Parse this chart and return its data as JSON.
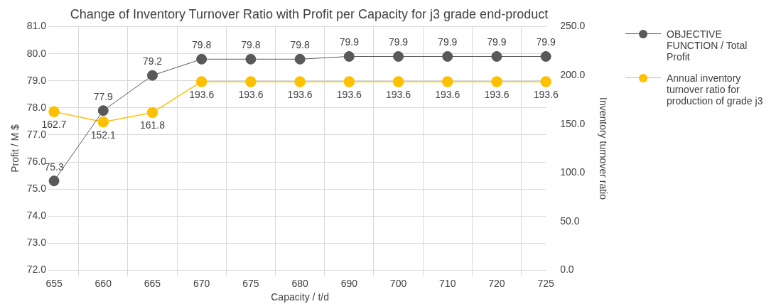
{
  "chart_data": {
    "type": "line",
    "title": "Change of Inventory Turnover Ratio with Profit per Capacity for j3 grade end-product",
    "xlabel": "Capacity / t/d",
    "ylabel": "Profit / M $",
    "y2label": "Inventory turnover ratio",
    "categories": [
      "655",
      "660",
      "665",
      "670",
      "675",
      "680",
      "690",
      "700",
      "710",
      "720",
      "725"
    ],
    "series": [
      {
        "name": "OBJECTIVE FUNCTION / Total Profit",
        "color": "#595959",
        "values": [
          75.3,
          77.9,
          79.2,
          79.8,
          79.8,
          79.8,
          79.9,
          79.9,
          79.9,
          79.9,
          79.9
        ]
      },
      {
        "name": "Annual inventory turnover ratio for production of grade j3",
        "color": "#ffc000",
        "axis": "y2",
        "values": [
          162.7,
          152.1,
          161.8,
          193.6,
          193.6,
          193.6,
          193.6,
          193.6,
          193.6,
          193.6,
          193.6
        ]
      }
    ],
    "ylim": [
      72,
      81
    ],
    "yticks": [
      {
        "value": 72,
        "label": "72.0"
      },
      {
        "value": 73,
        "label": "73.0"
      },
      {
        "value": 74,
        "label": "74.0"
      },
      {
        "value": 75,
        "label": "75.0"
      },
      {
        "value": 76,
        "label": "76.0"
      },
      {
        "value": 77,
        "label": "77.0"
      },
      {
        "value": 78,
        "label": "78.0"
      },
      {
        "value": 79,
        "label": "79.0"
      },
      {
        "value": 80,
        "label": "80.0"
      },
      {
        "value": 81,
        "label": "81.0"
      }
    ],
    "y2lim": [
      0,
      250
    ],
    "y2ticks": [
      {
        "value": 0,
        "label": "0.0"
      },
      {
        "value": 50,
        "label": "50.0"
      },
      {
        "value": 100,
        "label": "100.0"
      },
      {
        "value": 150,
        "label": "150.0"
      },
      {
        "value": 200,
        "label": "200.0"
      },
      {
        "value": 250,
        "label": "250.0"
      }
    ],
    "grid": true,
    "legend": "right",
    "marker": "circle",
    "line_style": "solid",
    "data_labels": true
  }
}
